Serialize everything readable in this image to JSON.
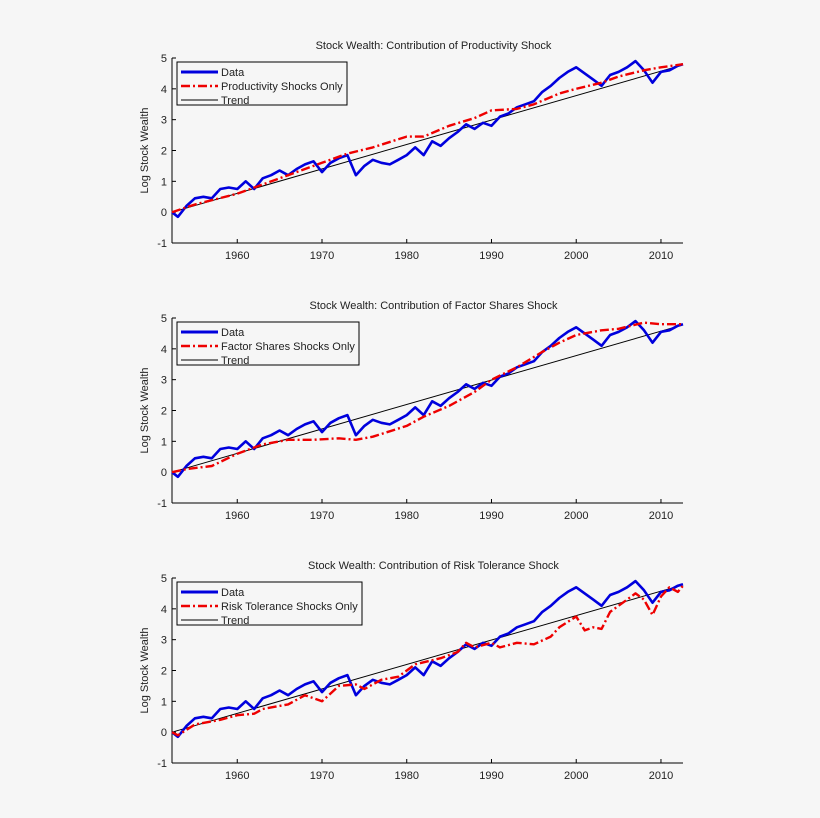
{
  "chart_data": [
    {
      "type": "line",
      "title": "Stock Wealth: Contribution of Productivity Shock",
      "ylabel": "Log Stock Wealth",
      "xlabel": "",
      "xlim": [
        1952.3,
        2012.6
      ],
      "ylim": [
        -1,
        5
      ],
      "xticks": [
        1960,
        1970,
        1980,
        1990,
        2000,
        2010
      ],
      "yticks": [
        -1,
        0,
        1,
        2,
        3,
        4,
        5
      ],
      "legend_position": "top-left",
      "series": [
        {
          "name": "Data",
          "key": "data",
          "color": "#0000dd",
          "style": "solid-thick"
        },
        {
          "name": "Productivity Shocks Only",
          "key": "shock",
          "color": "#ee0000",
          "style": "dash-dot",
          "x": [
            1952.3,
            1955,
            1960,
            1965,
            1970,
            1973,
            1976,
            1980,
            1982,
            1985,
            1988,
            1990,
            1993,
            1995,
            1998,
            2000,
            2003,
            2005,
            2008,
            2010,
            2012.6
          ],
          "y": [
            0,
            0.25,
            0.6,
            1.1,
            1.6,
            1.9,
            2.1,
            2.45,
            2.45,
            2.8,
            3.05,
            3.3,
            3.35,
            3.5,
            3.85,
            4.0,
            4.2,
            4.4,
            4.6,
            4.7,
            4.8
          ]
        },
        {
          "name": "Trend",
          "key": "trend",
          "color": "#000000",
          "style": "solid-thin"
        }
      ]
    },
    {
      "type": "line",
      "title": "Stock Wealth: Contribution of Factor Shares Shock",
      "ylabel": "Log Stock Wealth",
      "xlabel": "",
      "xlim": [
        1952.3,
        2012.6
      ],
      "ylim": [
        -1,
        5
      ],
      "xticks": [
        1960,
        1970,
        1980,
        1990,
        2000,
        2010
      ],
      "yticks": [
        -1,
        0,
        1,
        2,
        3,
        4,
        5
      ],
      "legend_position": "top-left",
      "series": [
        {
          "name": "Data",
          "key": "data",
          "color": "#0000dd",
          "style": "solid-thick"
        },
        {
          "name": "Factor Shares Shocks Only",
          "key": "shock",
          "color": "#ee0000",
          "style": "dash-dot",
          "x": [
            1952.3,
            1954,
            1957,
            1960,
            1963,
            1966,
            1969,
            1972,
            1974,
            1976,
            1980,
            1982,
            1985,
            1988,
            1990,
            1993,
            1996,
            1998,
            2000,
            2003,
            2005,
            2008,
            2010,
            2012.6
          ],
          "y": [
            0,
            0.1,
            0.2,
            0.6,
            0.9,
            1.05,
            1.05,
            1.1,
            1.05,
            1.15,
            1.5,
            1.8,
            2.15,
            2.6,
            3.0,
            3.4,
            3.9,
            4.2,
            4.45,
            4.6,
            4.65,
            4.85,
            4.8,
            4.8
          ]
        },
        {
          "name": "Trend",
          "key": "trend",
          "color": "#000000",
          "style": "solid-thin"
        }
      ]
    },
    {
      "type": "line",
      "title": "Stock Wealth: Contribution of Risk Tolerance Shock",
      "ylabel": "Log Stock Wealth",
      "xlabel": "",
      "xlim": [
        1952.3,
        2012.6
      ],
      "ylim": [
        -1,
        5
      ],
      "xticks": [
        1960,
        1970,
        1980,
        1990,
        2000,
        2010
      ],
      "yticks": [
        -1,
        0,
        1,
        2,
        3,
        4,
        5
      ],
      "legend_position": "top-left",
      "series": [
        {
          "name": "Data",
          "key": "data",
          "color": "#0000dd",
          "style": "solid-thick"
        },
        {
          "name": "Risk Tolerance Shocks Only",
          "key": "shock",
          "color": "#ee0000",
          "style": "dash-dot",
          "x": [
            1952.3,
            1953,
            1955,
            1958,
            1960,
            1962,
            1963,
            1966,
            1968,
            1970,
            1972,
            1974,
            1975,
            1977,
            1979,
            1981,
            1984,
            1986,
            1987,
            1988,
            1990,
            1991,
            1993,
            1995,
            1997,
            1998,
            2000,
            2001,
            2002,
            2003,
            2004,
            2006,
            2007,
            2008,
            2009,
            2010,
            2011,
            2012,
            2012.6
          ],
          "y": [
            0,
            -0.1,
            0.25,
            0.4,
            0.55,
            0.6,
            0.75,
            0.9,
            1.2,
            1.0,
            1.5,
            1.55,
            1.4,
            1.7,
            1.8,
            2.2,
            2.4,
            2.6,
            2.9,
            2.75,
            2.9,
            2.75,
            2.9,
            2.85,
            3.1,
            3.4,
            3.75,
            3.3,
            3.4,
            3.35,
            3.9,
            4.3,
            4.5,
            4.3,
            3.8,
            4.4,
            4.7,
            4.55,
            4.75
          ]
        },
        {
          "name": "Trend",
          "key": "trend",
          "color": "#000000",
          "style": "solid-thin"
        }
      ]
    }
  ],
  "shared_series": {
    "data": {
      "x": [
        1952.3,
        1953,
        1954,
        1955,
        1956,
        1957,
        1958,
        1959,
        1960,
        1961,
        1962,
        1963,
        1964,
        1965,
        1966,
        1967,
        1968,
        1969,
        1970,
        1971,
        1972,
        1973,
        1974,
        1975,
        1976,
        1977,
        1978,
        1979,
        1980,
        1981,
        1982,
        1983,
        1984,
        1985,
        1986,
        1987,
        1988,
        1989,
        1990,
        1991,
        1992,
        1993,
        1994,
        1995,
        1996,
        1997,
        1998,
        1999,
        2000,
        2001,
        2002,
        2003,
        2004,
        2005,
        2006,
        2007,
        2008,
        2009,
        2010,
        2011,
        2012,
        2012.6
      ],
      "y": [
        0,
        -0.15,
        0.2,
        0.45,
        0.5,
        0.45,
        0.75,
        0.8,
        0.75,
        1.0,
        0.75,
        1.1,
        1.2,
        1.35,
        1.2,
        1.4,
        1.55,
        1.65,
        1.3,
        1.6,
        1.75,
        1.85,
        1.2,
        1.5,
        1.7,
        1.6,
        1.55,
        1.7,
        1.85,
        2.1,
        1.85,
        2.3,
        2.15,
        2.4,
        2.6,
        2.85,
        2.7,
        2.9,
        2.8,
        3.1,
        3.2,
        3.4,
        3.5,
        3.6,
        3.9,
        4.1,
        4.35,
        4.55,
        4.7,
        4.5,
        4.3,
        4.1,
        4.45,
        4.55,
        4.7,
        4.9,
        4.6,
        4.2,
        4.55,
        4.6,
        4.75,
        4.8
      ]
    },
    "trend": {
      "x": [
        1952.3,
        2012.6
      ],
      "y": [
        0,
        4.78
      ]
    }
  }
}
